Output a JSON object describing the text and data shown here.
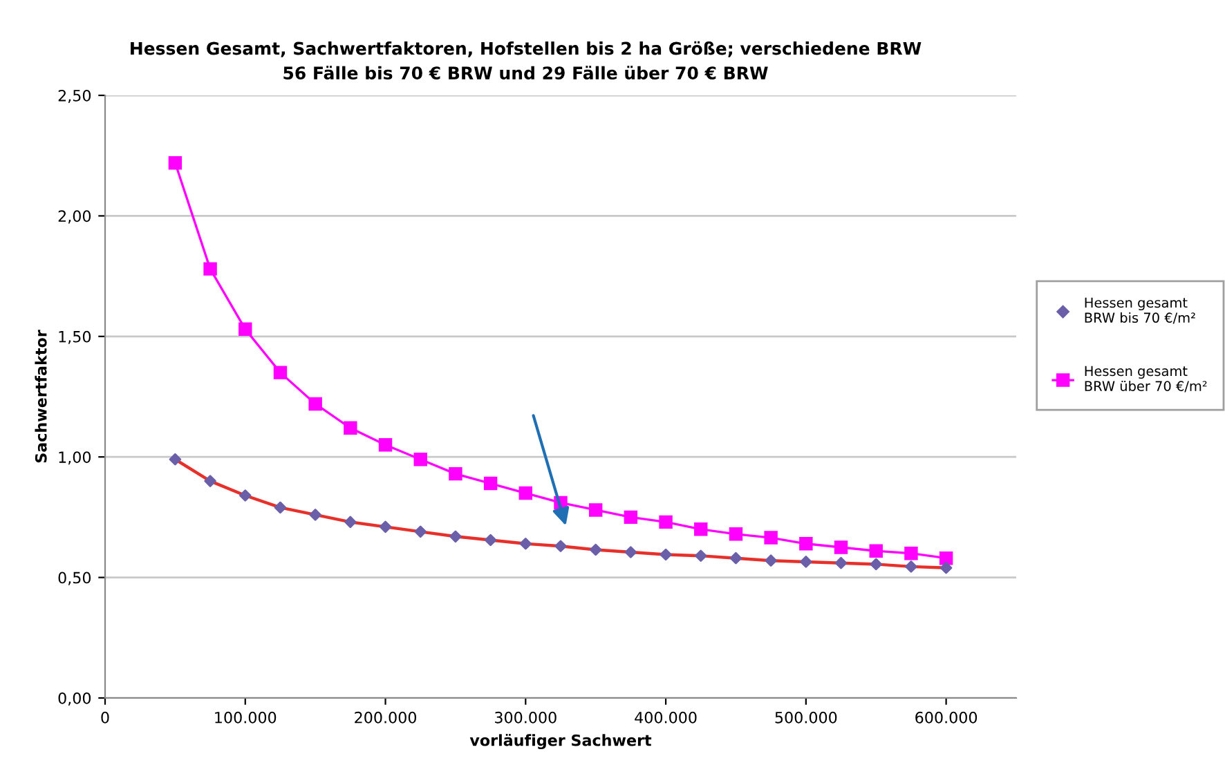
{
  "chart_data": {
    "type": "line",
    "title": "Hessen Gesamt, Sachwertfaktoren, Hofstellen bis 2 ha Größe; verschiedene BRW\n56 Fälle bis 70 € BRW und 29 Fälle über 70 € BRW",
    "xlabel": "vorläufiger Sachwert",
    "ylabel": "Sachwertfaktor",
    "x": [
      50000,
      75000,
      100000,
      125000,
      150000,
      175000,
      200000,
      225000,
      250000,
      275000,
      300000,
      325000,
      350000,
      375000,
      400000,
      425000,
      450000,
      475000,
      500000,
      525000,
      550000,
      575000,
      600000
    ],
    "series": [
      {
        "type": "line",
        "color": "#e8302a",
        "marker": "none",
        "values": [
          0.99,
          0.9,
          0.84,
          0.79,
          0.76,
          0.73,
          0.71,
          0.69,
          0.67,
          0.655,
          0.64,
          0.63,
          0.615,
          0.605,
          0.595,
          0.59,
          0.58,
          0.57,
          0.565,
          0.56,
          0.555,
          0.545,
          0.54
        ]
      },
      {
        "type": "scatter",
        "name": "Hessen gesamt\nBRW bis 70 €/m²",
        "color": "#6a5fa8",
        "marker": "diamond",
        "values": [
          0.99,
          0.9,
          0.84,
          0.79,
          0.76,
          0.73,
          0.71,
          0.69,
          0.67,
          0.655,
          0.64,
          0.63,
          0.615,
          0.605,
          0.595,
          0.59,
          0.58,
          0.57,
          0.565,
          0.56,
          0.555,
          0.545,
          0.54
        ]
      },
      {
        "type": "line",
        "name": "Hessen gesamt\nBRW über 70 €/m²",
        "color": "#ff00ff",
        "marker": "square",
        "values": [
          2.22,
          1.78,
          1.53,
          1.35,
          1.22,
          1.12,
          1.05,
          0.99,
          0.93,
          0.89,
          0.85,
          0.81,
          0.78,
          0.75,
          0.73,
          0.7,
          0.68,
          0.665,
          0.64,
          0.625,
          0.61,
          0.6,
          0.58
        ]
      }
    ],
    "xlim": [
      0,
      650000
    ],
    "xticks": [
      {
        "value": 0,
        "label": "0"
      },
      {
        "value": 100000,
        "label": "100.000"
      },
      {
        "value": 200000,
        "label": "200.000"
      },
      {
        "value": 300000,
        "label": "300.000"
      },
      {
        "value": 400000,
        "label": "400.000"
      },
      {
        "value": 500000,
        "label": "500.000"
      },
      {
        "value": 600000,
        "label": "600.000"
      }
    ],
    "ylim": [
      0,
      2.5
    ],
    "yticks": [
      {
        "value": 0,
        "label": "0,00"
      },
      {
        "value": 0.5,
        "label": "0,50"
      },
      {
        "value": 1,
        "label": "1,00"
      },
      {
        "value": 1.5,
        "label": "1,50"
      },
      {
        "value": 2,
        "label": "2,00"
      },
      {
        "value": 2.5,
        "label": "2,50"
      }
    ],
    "grid": "y",
    "legend": "right"
  }
}
